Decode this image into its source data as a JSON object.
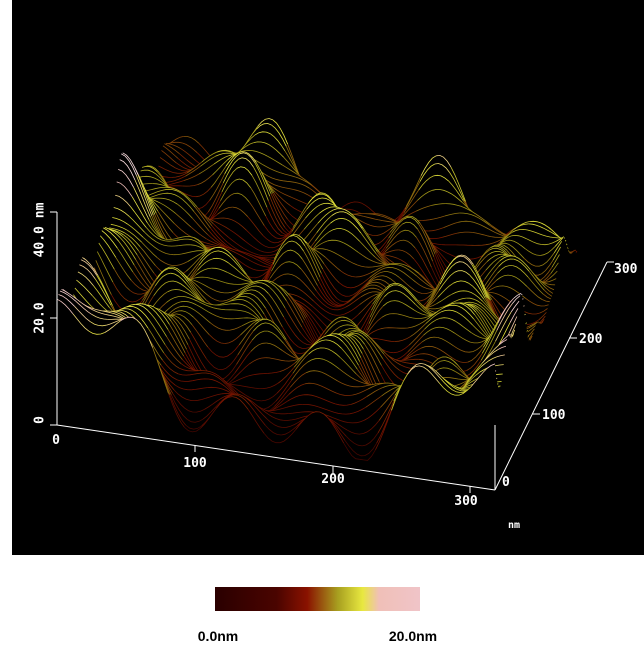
{
  "z_axis": {
    "ticks": [
      "40.0 nm",
      "20.0",
      "0"
    ]
  },
  "x_axis": {
    "ticks": [
      "0",
      "100",
      "200",
      "300"
    ]
  },
  "y_axis": {
    "ticks": [
      "0",
      "100",
      "200",
      "300"
    ],
    "unit": "nm"
  },
  "colorbar": {
    "min_label": "0.0nm",
    "max_label": "20.0nm"
  }
}
